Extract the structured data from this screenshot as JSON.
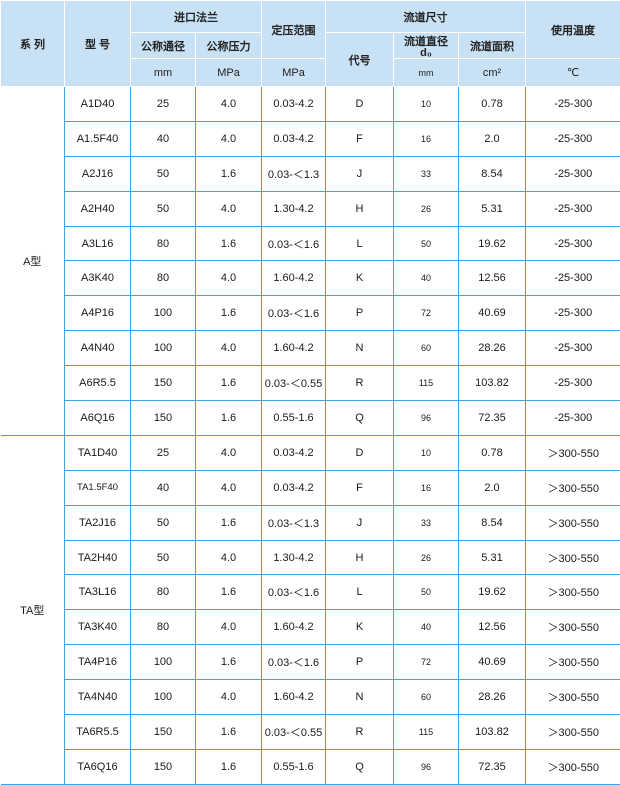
{
  "header": {
    "series": "系 列",
    "model": "型 号",
    "inlet_flange": "进口法兰",
    "nominal_diameter": "公称通径",
    "nominal_pressure": "公称压力",
    "set_pressure_range": "定压范围",
    "flow_size": "流道尺寸",
    "code": "代号",
    "flow_diameter": "流道直径",
    "flow_diameter_symbol": "d₀",
    "flow_area": "流道面积",
    "temperature": "使用温度",
    "units": {
      "diameter": "mm",
      "pressure": "MPa",
      "set_pressure": "MPa",
      "flow_diameter": "mm",
      "flow_area": "cm²",
      "temperature": "℃"
    }
  },
  "groups": [
    {
      "series": "A型",
      "rows": [
        [
          "A1D40",
          "25",
          "4.0",
          "0.03-4.2",
          "D",
          "10",
          "0.78",
          "-25-300"
        ],
        [
          "A1.5F40",
          "40",
          "4.0",
          "0.03-4.2",
          "F",
          "16",
          "2.0",
          "-25-300"
        ],
        [
          "A2J16",
          "50",
          "1.6",
          "0.03-＜1.3",
          "J",
          "33",
          "8.54",
          "-25-300"
        ],
        [
          "A2H40",
          "50",
          "4.0",
          "1.30-4.2",
          "H",
          "26",
          "5.31",
          "-25-300"
        ],
        [
          "A3L16",
          "80",
          "1.6",
          "0.03-＜1.6",
          "L",
          "50",
          "19.62",
          "-25-300"
        ],
        [
          "A3K40",
          "80",
          "4.0",
          "1.60-4.2",
          "K",
          "40",
          "12.56",
          "-25-300"
        ],
        [
          "A4P16",
          "100",
          "1.6",
          "0.03-＜1.6",
          "P",
          "72",
          "40.69",
          "-25-300"
        ],
        [
          "A4N40",
          "100",
          "4.0",
          "1.60-4.2",
          "N",
          "60",
          "28.26",
          "-25-300"
        ],
        [
          "A6R5.5",
          "150",
          "1.6",
          "0.03-＜0.55",
          "R",
          "115",
          "103.82",
          "-25-300"
        ],
        [
          "A6Q16",
          "150",
          "1.6",
          "0.55-1.6",
          "Q",
          "96",
          "72.35",
          "-25-300"
        ]
      ]
    },
    {
      "series": "TA型",
      "rows": [
        [
          "TA1D40",
          "25",
          "4.0",
          "0.03-4.2",
          "D",
          "10",
          "0.78",
          "＞300-550"
        ],
        [
          "TA1.5F40",
          "40",
          "4.0",
          "0.03-4.2",
          "F",
          "16",
          "2.0",
          "＞300-550"
        ],
        [
          "TA2J16",
          "50",
          "1.6",
          "0.03-＜1.3",
          "J",
          "33",
          "8.54",
          "＞300-550"
        ],
        [
          "TA2H40",
          "50",
          "4.0",
          "1.30-4.2",
          "H",
          "26",
          "5.31",
          "＞300-550"
        ],
        [
          "TA3L16",
          "80",
          "1.6",
          "0.03-＜1.6",
          "L",
          "50",
          "19.62",
          "＞300-550"
        ],
        [
          "TA3K40",
          "80",
          "4.0",
          "1.60-4.2",
          "K",
          "40",
          "12.56",
          "＞300-550"
        ],
        [
          "TA4P16",
          "100",
          "1.6",
          "0.03-＜1.6",
          "P",
          "72",
          "40.69",
          "＞300-550"
        ],
        [
          "TA4N40",
          "100",
          "4.0",
          "1.60-4.2",
          "N",
          "60",
          "28.26",
          "＞300-550"
        ],
        [
          "TA6R5.5",
          "150",
          "1.6",
          "0.03-＜0.55",
          "R",
          "115",
          "103.82",
          "＞300-550"
        ],
        [
          "TA6Q16",
          "150",
          "1.6",
          "0.55-1.6",
          "Q",
          "96",
          "72.35",
          "＞300-550"
        ]
      ]
    }
  ],
  "colors": {
    "header_bg": "#c8e1f5",
    "grid_line": "#3da5e6"
  }
}
